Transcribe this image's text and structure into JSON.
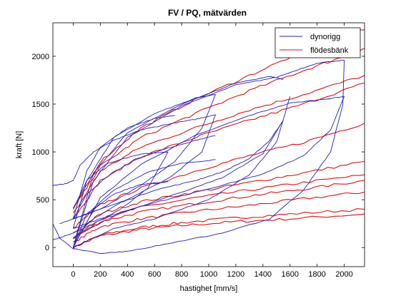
{
  "chart_data": {
    "type": "line",
    "title": "FV / PQ, mätvärden",
    "xlabel": "hastighet [mm/s]",
    "ylabel": "kraft [N]",
    "xlim": [
      -150,
      2150
    ],
    "ylim": [
      -200,
      2350
    ],
    "xticks": [
      "0",
      "200",
      "400",
      "600",
      "800",
      "1000",
      "1200",
      "1400",
      "1600",
      "1800",
      "2000"
    ],
    "yticks": [
      "0",
      "500",
      "1000",
      "1500",
      "2000"
    ],
    "grid": false,
    "legend_position": "top-right",
    "series": [
      {
        "name": "dynorigg",
        "color": "#1f1fbf",
        "curves": [
          [
            [
              -150,
              650
            ],
            [
              -50,
              670
            ],
            [
              0,
              700
            ],
            [
              50,
              860
            ],
            [
              150,
              1000
            ],
            [
              300,
              1120
            ],
            [
              500,
              1230
            ],
            [
              700,
              1290
            ],
            [
              900,
              1340
            ],
            [
              1050,
              1390
            ]
          ],
          [
            [
              0,
              300
            ],
            [
              100,
              560
            ],
            [
              250,
              740
            ],
            [
              450,
              920
            ],
            [
              700,
              1040
            ],
            [
              900,
              1120
            ],
            [
              1050,
              1170
            ]
          ],
          [
            [
              0,
              0
            ],
            [
              100,
              350
            ],
            [
              300,
              600
            ],
            [
              550,
              790
            ],
            [
              800,
              880
            ],
            [
              1050,
              920
            ]
          ],
          [
            [
              0,
              100
            ],
            [
              150,
              300
            ],
            [
              350,
              470
            ],
            [
              600,
              600
            ],
            [
              900,
              700
            ],
            [
              1100,
              790
            ],
            [
              1300,
              930
            ],
            [
              1450,
              1120
            ],
            [
              1550,
              1330
            ]
          ],
          [
            [
              0,
              0
            ],
            [
              200,
              520
            ],
            [
              500,
              870
            ],
            [
              900,
              1170
            ],
            [
              1300,
              1380
            ],
            [
              1600,
              1510
            ],
            [
              1900,
              1560
            ],
            [
              2000,
              1580
            ]
          ],
          [
            [
              0,
              0
            ],
            [
              150,
              700
            ],
            [
              400,
              1150
            ],
            [
              800,
              1480
            ],
            [
              1200,
              1700
            ],
            [
              1500,
              1780
            ],
            [
              1800,
              1930
            ],
            [
              2000,
              1960
            ]
          ],
          [
            [
              0,
              0
            ],
            [
              150,
              780
            ],
            [
              400,
              1200
            ],
            [
              800,
              1500
            ],
            [
              1200,
              1720
            ],
            [
              1450,
              1790
            ],
            [
              1550,
              1760
            ]
          ],
          [
            [
              0,
              200
            ],
            [
              100,
              700
            ],
            [
              300,
              1150
            ],
            [
              600,
              1400
            ],
            [
              900,
              1560
            ],
            [
              1050,
              1600
            ]
          ],
          [
            [
              0,
              300
            ],
            [
              100,
              800
            ],
            [
              200,
              1050
            ],
            [
              400,
              1250
            ],
            [
              600,
              1350
            ],
            [
              750,
              1380
            ]
          ],
          [
            [
              0,
              400
            ],
            [
              100,
              700
            ],
            [
              250,
              880
            ],
            [
              500,
              980
            ],
            [
              700,
              1000
            ]
          ],
          [
            [
              0,
              0
            ],
            [
              150,
              400
            ],
            [
              300,
              560
            ],
            [
              500,
              660
            ],
            [
              700,
              690
            ]
          ],
          [
            [
              2000,
              1960
            ],
            [
              1990,
              1500
            ],
            [
              1900,
              1000
            ],
            [
              1700,
              600
            ],
            [
              1450,
              300
            ],
            [
              1100,
              150
            ],
            [
              700,
              40
            ],
            [
              400,
              -40
            ],
            [
              200,
              -60
            ],
            [
              0,
              -10
            ],
            [
              -100,
              100
            ],
            [
              -150,
              250
            ]
          ],
          [
            [
              1050,
              1390
            ],
            [
              950,
              1000
            ],
            [
              700,
              720
            ],
            [
              400,
              500
            ],
            [
              150,
              380
            ],
            [
              0,
              300
            ],
            [
              -100,
              250
            ]
          ],
          [
            [
              1600,
              1580
            ],
            [
              1500,
              1100
            ],
            [
              1300,
              760
            ],
            [
              1000,
              500
            ],
            [
              600,
              300
            ],
            [
              300,
              200
            ],
            [
              0,
              0
            ]
          ],
          [
            [
              700,
              1000
            ],
            [
              550,
              620
            ],
            [
              350,
              400
            ],
            [
              150,
              250
            ],
            [
              0,
              150
            ],
            [
              -150,
              80
            ]
          ],
          [
            [
              1550,
              1330
            ],
            [
              1400,
              980
            ],
            [
              1100,
              730
            ],
            [
              700,
              530
            ],
            [
              300,
              330
            ],
            [
              0,
              100
            ]
          ],
          [
            [
              2000,
              1580
            ],
            [
              1900,
              1230
            ],
            [
              1700,
              960
            ],
            [
              1400,
              770
            ],
            [
              1000,
              610
            ],
            [
              600,
              470
            ],
            [
              200,
              300
            ],
            [
              0,
              200
            ]
          ],
          [
            [
              1050,
              1600
            ],
            [
              950,
              1250
            ],
            [
              750,
              900
            ],
            [
              500,
              650
            ],
            [
              200,
              400
            ],
            [
              0,
              300
            ]
          ]
        ]
      },
      {
        "name": "flödesbänk",
        "color": "#dd1111",
        "curves": [
          [
            [
              0,
              0
            ],
            [
              200,
              120
            ],
            [
              500,
              190
            ],
            [
              800,
              230
            ],
            [
              1200,
              270
            ],
            [
              1600,
              300
            ],
            [
              2150,
              350
            ]
          ],
          [
            [
              0,
              0
            ],
            [
              200,
              130
            ],
            [
              500,
              210
            ],
            [
              800,
              260
            ],
            [
              1200,
              310
            ],
            [
              1600,
              350
            ],
            [
              2150,
              400
            ]
          ],
          [
            [
              0,
              50
            ],
            [
              200,
              220
            ],
            [
              500,
              300
            ],
            [
              900,
              380
            ],
            [
              1300,
              440
            ],
            [
              1700,
              510
            ],
            [
              2150,
              580
            ]
          ],
          [
            [
              0,
              100
            ],
            [
              200,
              270
            ],
            [
              500,
              370
            ],
            [
              900,
              460
            ],
            [
              1300,
              540
            ],
            [
              1700,
              610
            ],
            [
              2150,
              700
            ]
          ],
          [
            [
              0,
              100
            ],
            [
              200,
              300
            ],
            [
              500,
              420
            ],
            [
              900,
              520
            ],
            [
              1300,
              600
            ],
            [
              1700,
              680
            ],
            [
              2150,
              760
            ]
          ],
          [
            [
              0,
              150
            ],
            [
              200,
              350
            ],
            [
              500,
              480
            ],
            [
              900,
              580
            ],
            [
              1300,
              680
            ],
            [
              1700,
              780
            ],
            [
              2150,
              900
            ]
          ],
          [
            [
              0,
              200
            ],
            [
              200,
              450
            ],
            [
              500,
              620
            ],
            [
              900,
              800
            ],
            [
              1300,
              960
            ],
            [
              1700,
              1100
            ],
            [
              2150,
              1300
            ]
          ],
          [
            [
              0,
              300
            ],
            [
              200,
              700
            ],
            [
              500,
              950
            ],
            [
              900,
              1150
            ],
            [
              1300,
              1330
            ],
            [
              1700,
              1500
            ],
            [
              2150,
              1720
            ]
          ],
          [
            [
              0,
              350
            ],
            [
              200,
              800
            ],
            [
              500,
              1050
            ],
            [
              900,
              1250
            ],
            [
              1300,
              1440
            ],
            [
              1700,
              1600
            ],
            [
              2150,
              1800
            ]
          ],
          [
            [
              0,
              400
            ],
            [
              200,
              850
            ],
            [
              500,
              1150
            ],
            [
              900,
              1400
            ],
            [
              1300,
              1640
            ],
            [
              1700,
              1850
            ],
            [
              2000,
              2000
            ],
            [
              2150,
              2080
            ]
          ],
          [
            [
              0,
              400
            ],
            [
              200,
              900
            ],
            [
              500,
              1250
            ],
            [
              900,
              1550
            ],
            [
              1300,
              1800
            ],
            [
              1700,
              2050
            ],
            [
              2000,
              2200
            ],
            [
              2150,
              2280
            ]
          ]
        ]
      }
    ]
  }
}
